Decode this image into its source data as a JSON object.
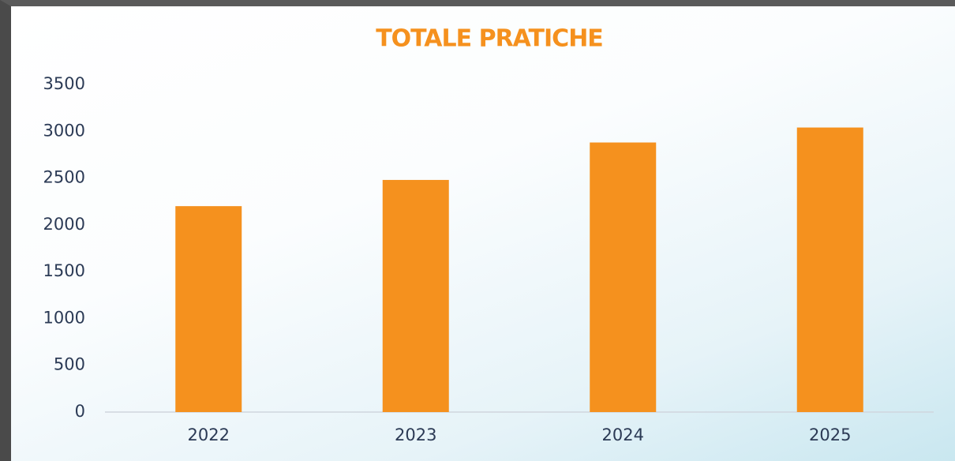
{
  "chart_data": {
    "type": "bar",
    "title": "TOTALE PRATICHE",
    "categories": [
      "2022",
      "2023",
      "2024",
      "2025"
    ],
    "values": [
      2200,
      2480,
      2880,
      3040
    ],
    "color": "#f5911e",
    "ylim": [
      0,
      3500
    ],
    "yticks": [
      0,
      500,
      1000,
      1500,
      2000,
      2500,
      3000,
      3500
    ],
    "grid": false
  }
}
